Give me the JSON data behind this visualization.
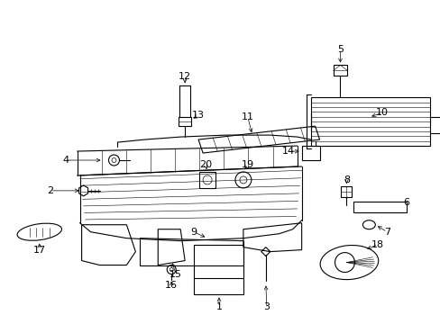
{
  "bg_color": "#ffffff",
  "line_color": "#000000",
  "fig_width": 4.89,
  "fig_height": 3.6,
  "dpi": 100,
  "label_fontsize": 8,
  "lw": 0.8
}
